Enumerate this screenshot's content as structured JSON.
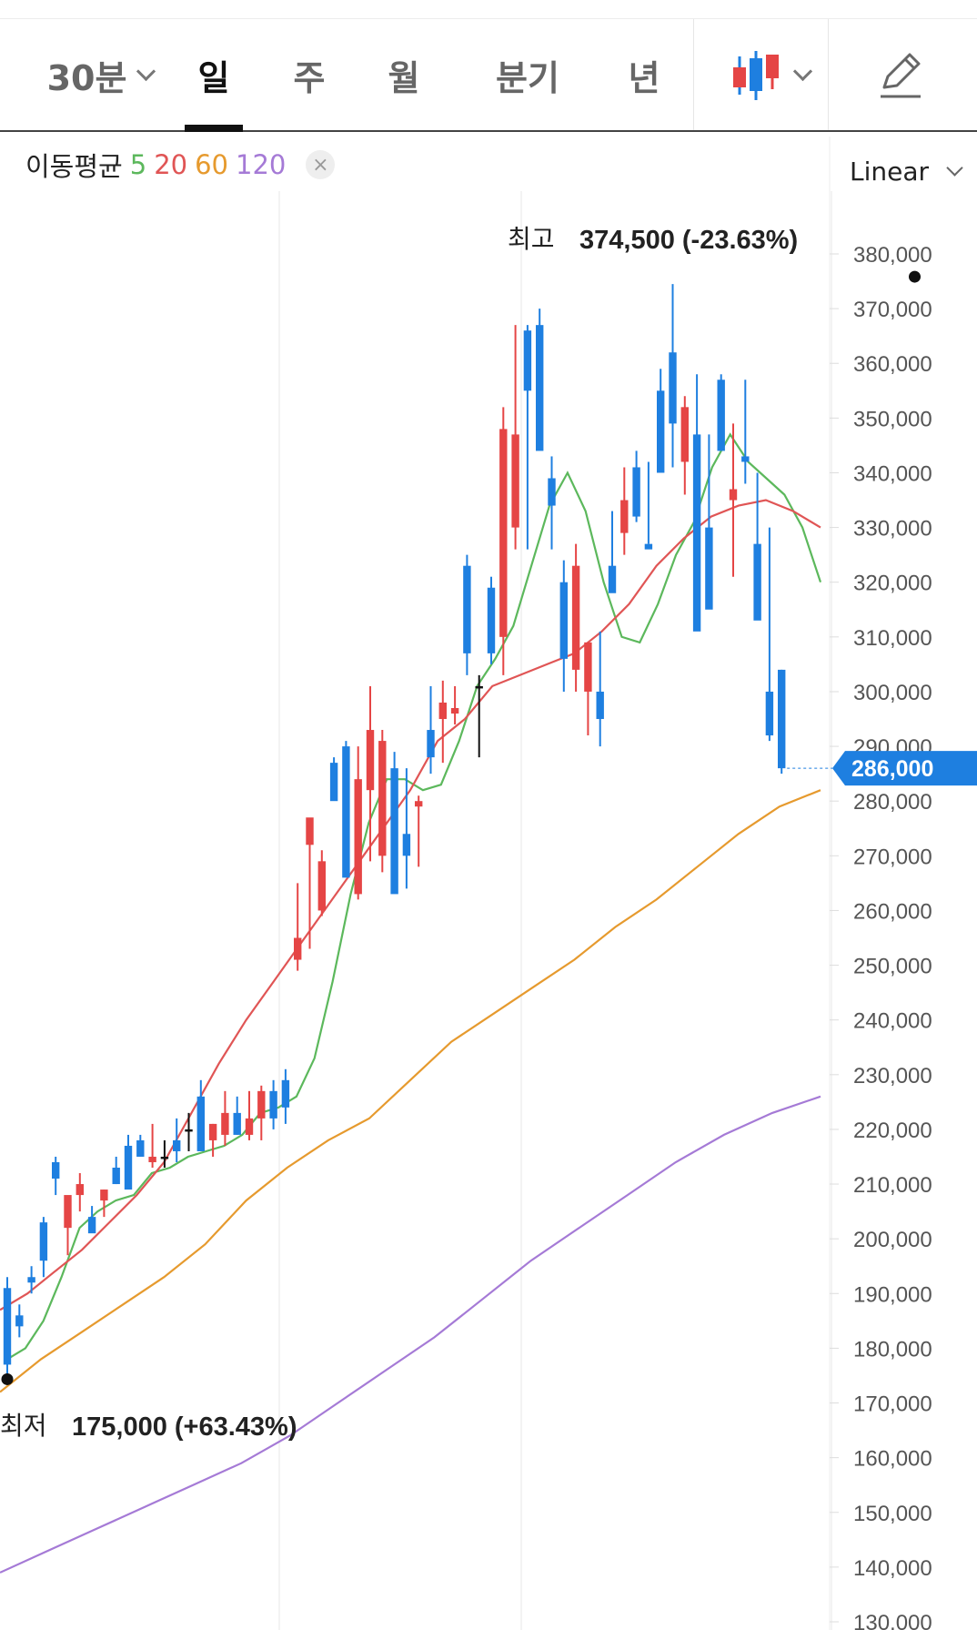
{
  "toolbar": {
    "tabs": [
      {
        "label": "30분",
        "has_dropdown": true
      },
      {
        "label": "일",
        "active": true
      },
      {
        "label": "주"
      },
      {
        "label": "월"
      },
      {
        "label": "분기"
      },
      {
        "label": "년"
      }
    ],
    "chart_type_icon": "candlestick-icon",
    "draw_icon": "pencil-icon"
  },
  "legend": {
    "prefix": "이동평균",
    "periods": [
      {
        "label": "5",
        "color": "#5cb85c"
      },
      {
        "label": "20",
        "color": "#e05555"
      },
      {
        "label": "60",
        "color": "#e69a2e"
      },
      {
        "label": "120",
        "color": "#a57ad6"
      }
    ],
    "close_symbol": "×"
  },
  "scale": {
    "label": "Linear"
  },
  "colors": {
    "up": "#e54545",
    "down": "#1e7fe0",
    "neutral": "#111111",
    "price_tag": "#1e7fe0"
  },
  "chart_data": {
    "type": "candlestick",
    "ylim": [
      130000,
      385000
    ],
    "yticks": [
      380000,
      370000,
      360000,
      350000,
      340000,
      330000,
      320000,
      310000,
      300000,
      290000,
      280000,
      270000,
      260000,
      250000,
      240000,
      230000,
      220000,
      210000,
      200000,
      190000,
      180000,
      170000,
      160000,
      150000,
      140000,
      130000
    ],
    "ytick_labels": [
      "380,000",
      "370,000",
      "360,000",
      "350,000",
      "340,000",
      "330,000",
      "320,000",
      "310,000",
      "300,000",
      "290,000",
      "280,000",
      "270,000",
      "260,000",
      "250,000",
      "240,000",
      "230,000",
      "220,000",
      "210,000",
      "200,000",
      "190,000",
      "180,000",
      "170,000",
      "160,000",
      "150,000",
      "140,000",
      "130,000"
    ],
    "current_price": {
      "value": 286000,
      "label": "286,000"
    },
    "high_marker": {
      "label": "최고",
      "value_text": "374,500 (-23.63%)",
      "value": 374500,
      "index": 75
    },
    "low_marker": {
      "label": "최저",
      "value_text": "175,000 (+63.43%)",
      "value": 175000,
      "index": 0
    },
    "candles": [
      [
        191000,
        193000,
        175000,
        177000
      ],
      [
        186000,
        188000,
        182000,
        184000
      ],
      [
        193000,
        195000,
        190000,
        192000
      ],
      [
        203000,
        204000,
        193000,
        196000
      ],
      [
        214000,
        215000,
        208000,
        211000
      ],
      [
        202000,
        206000,
        197000,
        208000
      ],
      [
        208000,
        212000,
        205000,
        210000
      ],
      [
        204000,
        206000,
        202000,
        201000
      ],
      [
        207000,
        209000,
        204000,
        209000
      ],
      [
        213000,
        215000,
        210000,
        210000
      ],
      [
        217000,
        219000,
        211000,
        209000
      ],
      [
        218000,
        219000,
        215000,
        215000
      ],
      [
        214000,
        221000,
        213000,
        215000
      ],
      [
        215000,
        218000,
        213000,
        215000
      ],
      [
        218000,
        222000,
        214000,
        216000
      ],
      [
        220000,
        223000,
        216000
      ],
      [
        226000,
        229000,
        219000,
        216000
      ],
      [
        218000,
        221000,
        215000,
        221000
      ],
      [
        219000,
        227000,
        217000,
        223000
      ],
      [
        223000,
        226000,
        219000,
        219000
      ],
      [
        219000,
        227000,
        218000,
        222000
      ],
      [
        222000,
        228000,
        218000,
        227000
      ],
      [
        227000,
        229000,
        220000,
        222000
      ],
      [
        229000,
        231000,
        221000,
        224000
      ],
      [
        251000,
        265000,
        249000,
        255000
      ],
      [
        272000,
        276000,
        253000,
        277000
      ],
      [
        260000,
        271000,
        259000,
        269000
      ],
      [
        287000,
        288000,
        281000,
        280000
      ],
      [
        290000,
        291000,
        275000,
        266000
      ],
      [
        263000,
        290000,
        262000,
        284000
      ],
      [
        282000,
        301000,
        269000,
        293000
      ],
      [
        270000,
        293000,
        267000,
        291000
      ],
      [
        286000,
        289000,
        267000,
        263000
      ],
      [
        274000,
        286000,
        264000,
        270000
      ],
      [
        279000,
        281000,
        268000,
        280000
      ],
      [
        293000,
        301000,
        285000,
        288000
      ],
      [
        295000,
        302000,
        287000,
        298000
      ],
      [
        296000,
        301000,
        294000,
        297000
      ],
      [
        323000,
        325000,
        303000,
        307000
      ],
      [
        301000,
        303000,
        288000,
        301000
      ],
      [
        319000,
        321000,
        305000,
        307000
      ],
      [
        310000,
        352000,
        303000,
        348000
      ],
      [
        330000,
        367000,
        326000,
        347000
      ],
      [
        366000,
        367000,
        326000,
        355000
      ],
      [
        367000,
        370000,
        349000,
        344000
      ],
      [
        339000,
        343000,
        326000,
        334000
      ],
      [
        320000,
        324000,
        300000,
        306000
      ],
      [
        304000,
        327000,
        300000,
        323000
      ],
      [
        300000,
        309000,
        292000,
        309000
      ],
      [
        300000,
        311000,
        290000,
        295000
      ],
      [
        323000,
        333000,
        320000,
        318000
      ],
      [
        329000,
        341000,
        325000,
        335000
      ],
      [
        341000,
        344000,
        331000,
        332000
      ],
      [
        327000,
        342000,
        327000,
        326000
      ],
      [
        355000,
        359000,
        341000,
        340000
      ],
      [
        362000,
        374500,
        341000,
        349000
      ],
      [
        342000,
        354000,
        336000,
        352000
      ],
      [
        347000,
        358000,
        325000,
        311000
      ],
      [
        330000,
        347000,
        327000,
        315000
      ],
      [
        357000,
        358000,
        349000,
        344000
      ],
      [
        335000,
        349000,
        321000,
        337000
      ],
      [
        343000,
        357000,
        338000,
        342000
      ],
      [
        327000,
        340000,
        315000,
        313000
      ],
      [
        300000,
        330000,
        291000,
        292000
      ],
      [
        304000,
        304000,
        285000,
        286000
      ]
    ],
    "series": [
      {
        "name": "5",
        "color": "#5cb85c",
        "values": [
          178000,
          180000,
          185000,
          193000,
          202000,
          205000,
          207000,
          208000,
          212000,
          213000,
          215000,
          216000,
          217000,
          219000,
          223000,
          224000,
          226000,
          233000,
          247000,
          263000,
          276000,
          284000,
          284000,
          282000,
          283000,
          291000,
          301000,
          306000,
          312000,
          323000,
          334000,
          340000,
          333000,
          320000,
          310000,
          309000,
          316000,
          325000,
          331000,
          341000,
          347000,
          342000,
          339000,
          336000,
          330000,
          320000
        ]
      },
      {
        "name": "20",
        "color": "#e05555",
        "values": [
          187000,
          190000,
          194000,
          198000,
          203000,
          208000,
          214000,
          223000,
          232000,
          240000,
          247000,
          254000,
          261000,
          268000,
          275000,
          282000,
          291000,
          295000,
          301000,
          303000,
          305000,
          307000,
          311000,
          316000,
          323000,
          328000,
          332000,
          334000,
          335000,
          333000,
          330000
        ]
      },
      {
        "name": "60",
        "color": "#e69a2e",
        "values": [
          172000,
          178000,
          183000,
          188000,
          193000,
          199000,
          207000,
          213000,
          218000,
          222000,
          229000,
          236000,
          241000,
          246000,
          251000,
          257000,
          262000,
          268000,
          274000,
          279000,
          282000
        ]
      },
      {
        "name": "120",
        "color": "#a57ad6",
        "values": [
          139000,
          143000,
          147000,
          151000,
          155000,
          159000,
          164000,
          170000,
          176000,
          182000,
          189000,
          196000,
          202000,
          208000,
          214000,
          219000,
          223000,
          226000
        ]
      }
    ]
  }
}
